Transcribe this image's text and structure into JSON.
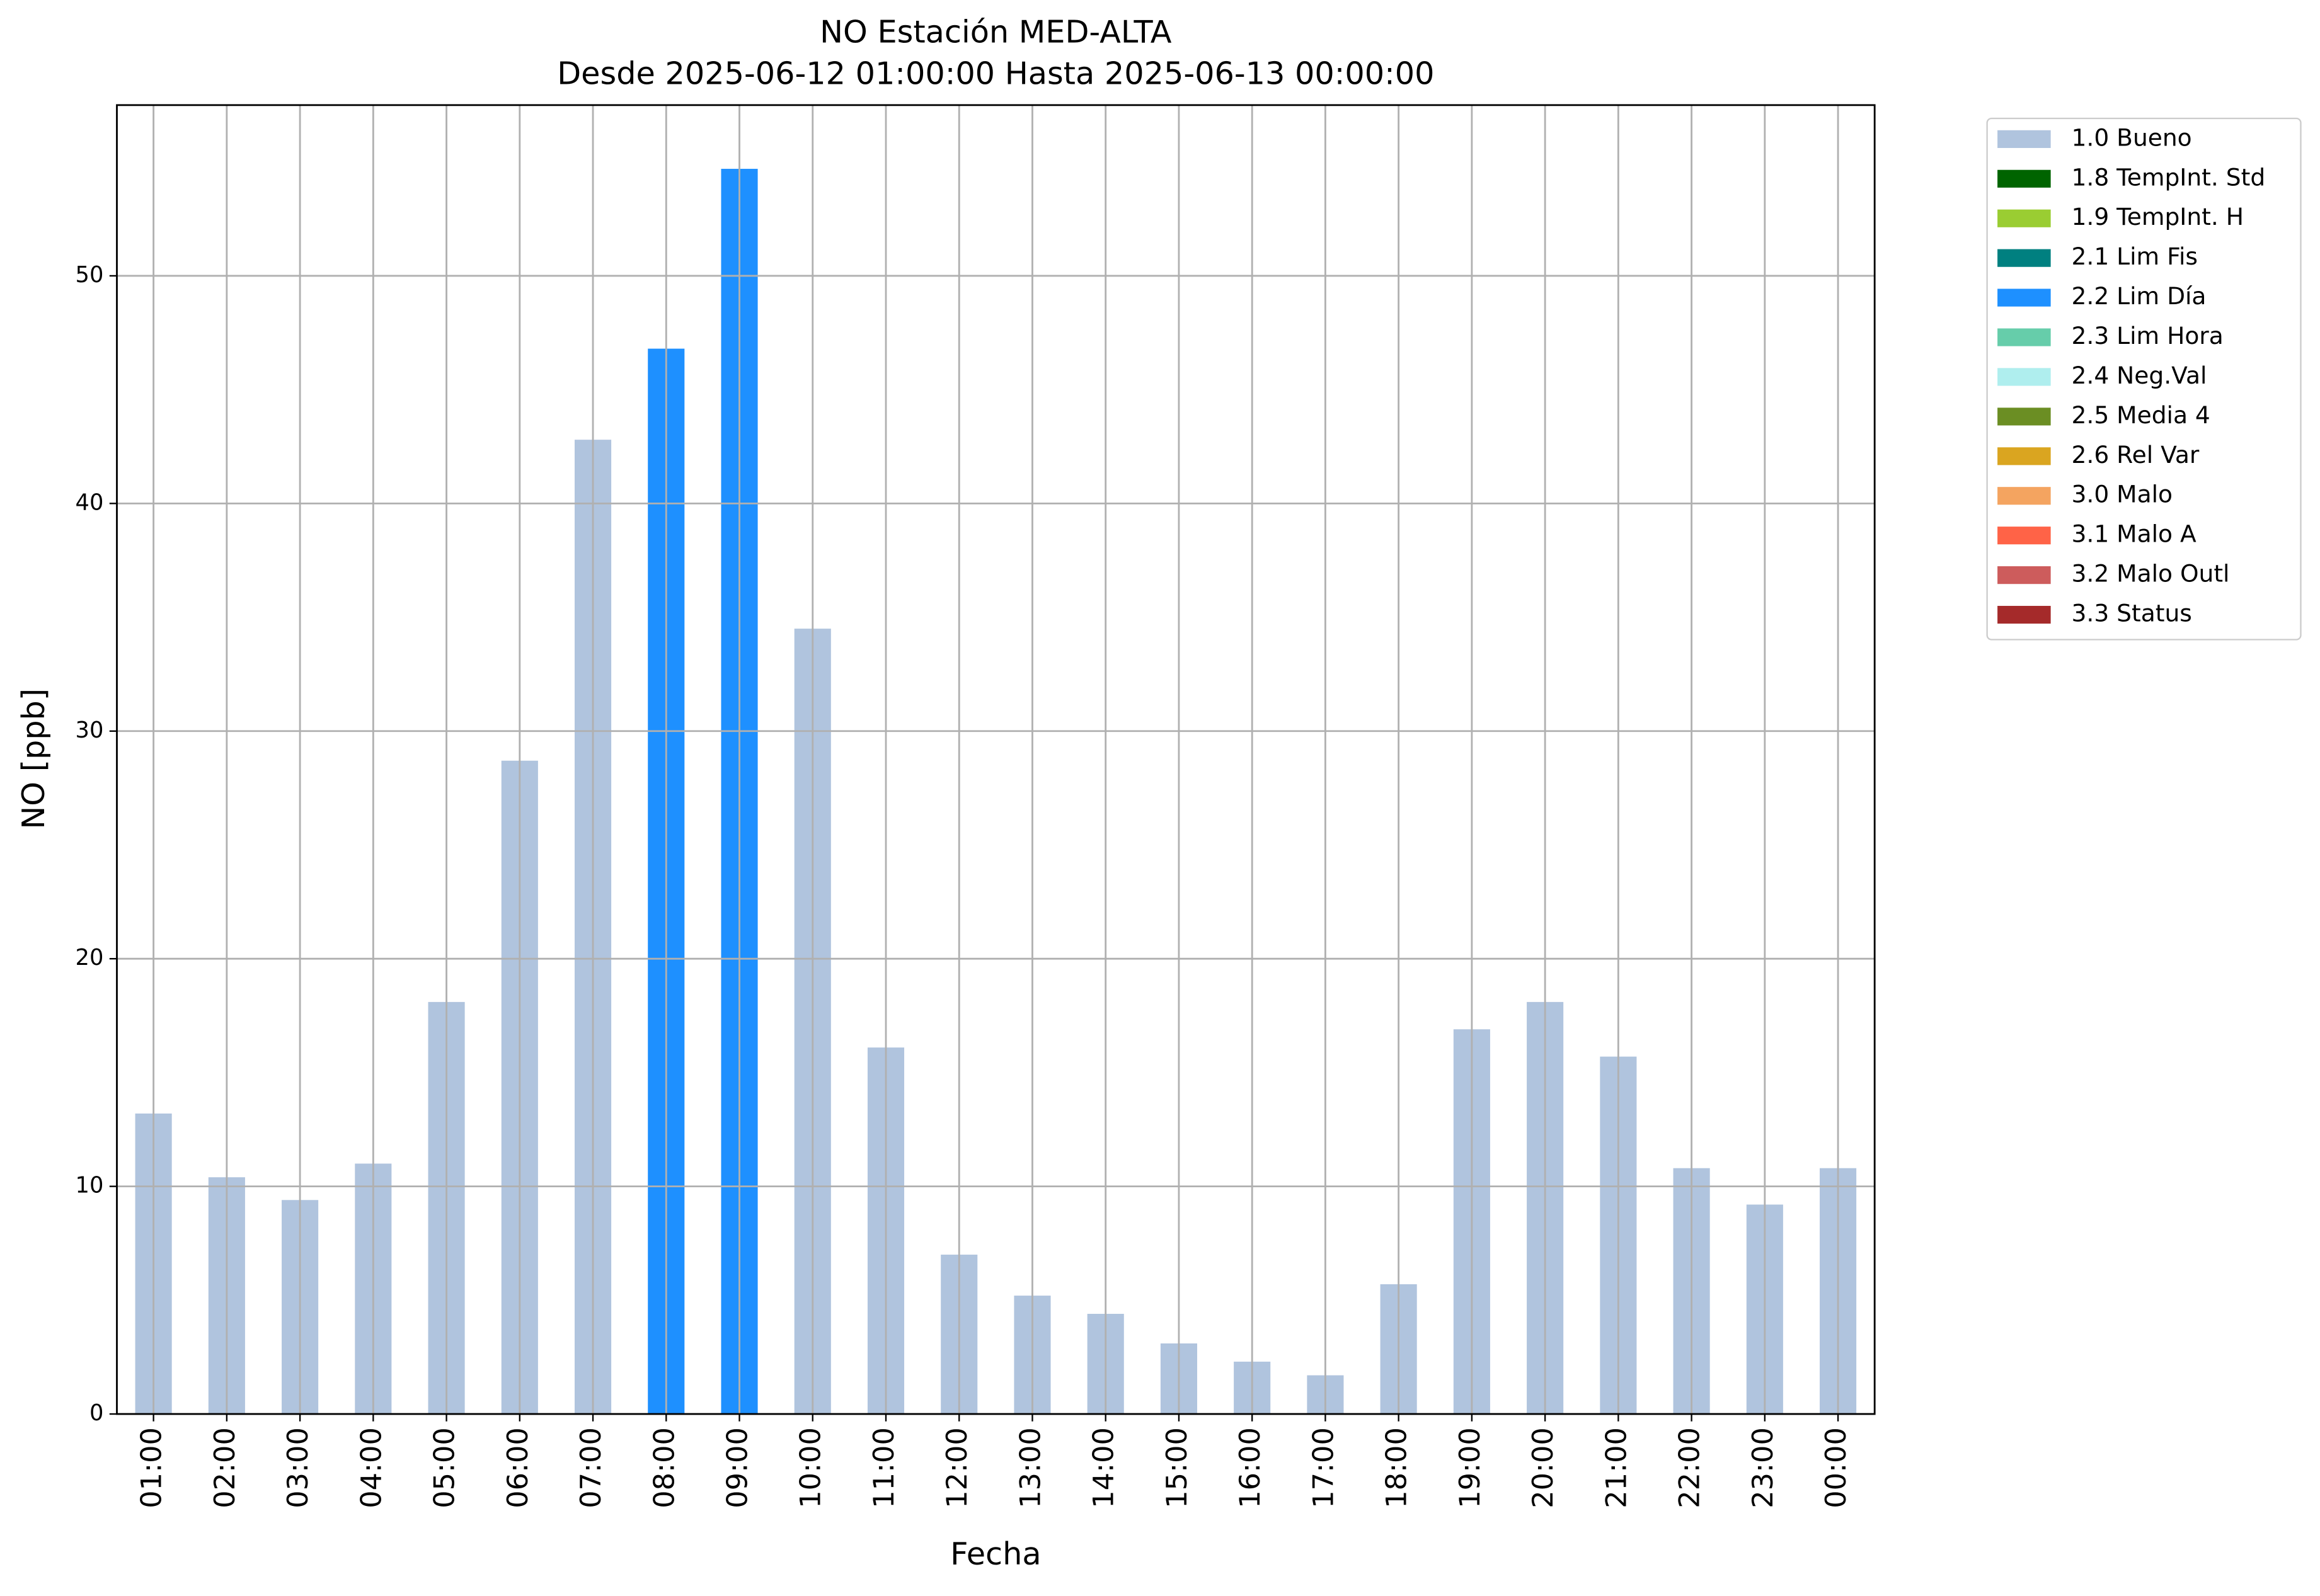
{
  "chart_data": {
    "type": "stacked_bar",
    "title": "NO Estación MED-ALTA",
    "subtitle": "Desde 2025-06-12 01:00:00 Hasta 2025-06-13 00:00:00",
    "x_label": "Fecha",
    "y_label": "NO [ppb]",
    "categories": [
      "01:00",
      "02:00",
      "03:00",
      "04:00",
      "05:00",
      "06:00",
      "07:00",
      "08:00",
      "09:00",
      "10:00",
      "11:00",
      "12:00",
      "13:00",
      "14:00",
      "15:00",
      "16:00",
      "17:00",
      "18:00",
      "19:00",
      "20:00",
      "21:00",
      "22:00",
      "23:00",
      "00:00"
    ],
    "series": [
      {
        "name": "1.0 Bueno",
        "color": "#b0c4de",
        "values": [
          13.2,
          10.4,
          9.4,
          11.0,
          18.1,
          28.7,
          42.8,
          null,
          null,
          34.5,
          16.1,
          7.0,
          5.2,
          4.4,
          3.1,
          2.3,
          1.7,
          5.7,
          16.9,
          18.1,
          15.7,
          10.8,
          9.2,
          10.8
        ]
      },
      {
        "name": "1.8 TempInt. Std",
        "color": "#006400",
        "values": [
          null,
          null,
          null,
          null,
          null,
          null,
          null,
          null,
          null,
          null,
          null,
          null,
          null,
          null,
          null,
          null,
          null,
          null,
          null,
          null,
          null,
          null,
          null,
          null
        ]
      },
      {
        "name": "1.9 TempInt. H",
        "color": "#9acd32",
        "values": [
          null,
          null,
          null,
          null,
          null,
          null,
          null,
          null,
          null,
          null,
          null,
          null,
          null,
          null,
          null,
          null,
          null,
          null,
          null,
          null,
          null,
          null,
          null,
          null
        ]
      },
      {
        "name": "2.1 Lim Fis",
        "color": "#008080",
        "values": [
          null,
          null,
          null,
          null,
          null,
          null,
          null,
          null,
          null,
          null,
          null,
          null,
          null,
          null,
          null,
          null,
          null,
          null,
          null,
          null,
          null,
          null,
          null,
          null
        ]
      },
      {
        "name": "2.2 Lim Día",
        "color": "#1e90ff",
        "values": [
          null,
          null,
          null,
          null,
          null,
          null,
          null,
          46.8,
          54.7,
          null,
          null,
          null,
          null,
          null,
          null,
          null,
          null,
          null,
          null,
          null,
          null,
          null,
          null,
          null
        ]
      },
      {
        "name": "2.3 Lim Hora",
        "color": "#66cdaa",
        "values": [
          null,
          null,
          null,
          null,
          null,
          null,
          null,
          null,
          null,
          null,
          null,
          null,
          null,
          null,
          null,
          null,
          null,
          null,
          null,
          null,
          null,
          null,
          null,
          null
        ]
      },
      {
        "name": "2.4 Neg.Val",
        "color": "#afeeee",
        "values": [
          null,
          null,
          null,
          null,
          null,
          null,
          null,
          null,
          null,
          null,
          null,
          null,
          null,
          null,
          null,
          null,
          null,
          null,
          null,
          null,
          null,
          null,
          null,
          null
        ]
      },
      {
        "name": "2.5 Media 4",
        "color": "#6b8e23",
        "values": [
          null,
          null,
          null,
          null,
          null,
          null,
          null,
          null,
          null,
          null,
          null,
          null,
          null,
          null,
          null,
          null,
          null,
          null,
          null,
          null,
          null,
          null,
          null,
          null
        ]
      },
      {
        "name": "2.6 Rel Var",
        "color": "#daa520",
        "values": [
          null,
          null,
          null,
          null,
          null,
          null,
          null,
          null,
          null,
          null,
          null,
          null,
          null,
          null,
          null,
          null,
          null,
          null,
          null,
          null,
          null,
          null,
          null,
          null
        ]
      },
      {
        "name": "3.0 Malo",
        "color": "#f4a460",
        "values": [
          null,
          null,
          null,
          null,
          null,
          null,
          null,
          null,
          null,
          null,
          null,
          null,
          null,
          null,
          null,
          null,
          null,
          null,
          null,
          null,
          null,
          null,
          null,
          null
        ]
      },
      {
        "name": "3.1 Malo A",
        "color": "#ff6347",
        "values": [
          null,
          null,
          null,
          null,
          null,
          null,
          null,
          null,
          null,
          null,
          null,
          null,
          null,
          null,
          null,
          null,
          null,
          null,
          null,
          null,
          null,
          null,
          null,
          null
        ]
      },
      {
        "name": "3.2 Malo Outl",
        "color": "#cd5c5c",
        "values": [
          null,
          null,
          null,
          null,
          null,
          null,
          null,
          null,
          null,
          null,
          null,
          null,
          null,
          null,
          null,
          null,
          null,
          null,
          null,
          null,
          null,
          null,
          null,
          null
        ]
      },
      {
        "name": "3.3 Status",
        "color": "#a52a2a",
        "values": [
          null,
          null,
          null,
          null,
          null,
          null,
          null,
          null,
          null,
          null,
          null,
          null,
          null,
          null,
          null,
          null,
          null,
          null,
          null,
          null,
          null,
          null,
          null,
          null
        ]
      }
    ],
    "ylim": [
      0,
      57.5
    ],
    "yticks": [
      0,
      10,
      20,
      30,
      40,
      50
    ],
    "grid": true,
    "legend": "outside-upper-right"
  }
}
